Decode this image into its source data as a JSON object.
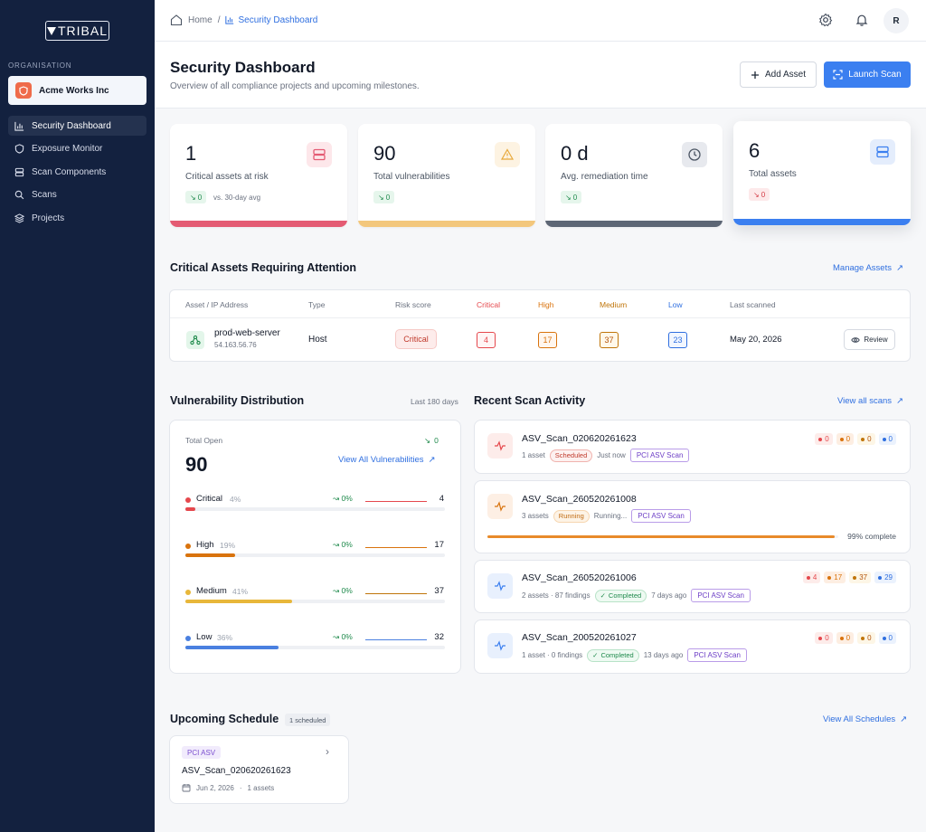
{
  "brand": {
    "name": "TRIBAL"
  },
  "sidebar": {
    "org_label": "ORGANISATION",
    "org_name": "Acme Works Inc",
    "items": [
      {
        "label": "Security Dashboard",
        "icon": "bar-chart-icon"
      },
      {
        "label": "Exposure Monitor",
        "icon": "shield-icon"
      },
      {
        "label": "Scan Components",
        "icon": "server-icon"
      },
      {
        "label": "Scans",
        "icon": "search-icon"
      },
      {
        "label": "Projects",
        "icon": "layers-icon"
      }
    ]
  },
  "topbar": {
    "breadcrumb": {
      "home": "Home",
      "sep": "/",
      "current": "Security Dashboard"
    },
    "avatar_initial": "R"
  },
  "header": {
    "title": "Security Dashboard",
    "subtitle": "Overview of all compliance projects and upcoming milestones.",
    "add_asset": "Add Asset",
    "launch_scan": "Launch Scan"
  },
  "stats": [
    {
      "value": "1",
      "label": "Critical assets at risk",
      "delta": "0",
      "note": "vs. 30-day avg",
      "color": "#e45b73"
    },
    {
      "value": "90",
      "label": "Total vulnerabilities",
      "delta": "0",
      "note": "",
      "color": "#f3c77c"
    },
    {
      "value": "0 d",
      "label": "Avg. remediation time",
      "delta": "0",
      "note": "",
      "color": "#5d6675"
    },
    {
      "value": "6",
      "label": "Total assets",
      "delta": "0",
      "note": "",
      "color": "#3b7ff0"
    }
  ],
  "critical_assets": {
    "title": "Critical Assets Requiring Attention",
    "manage_link": "Manage Assets",
    "columns": [
      "Asset / IP Address",
      "Type",
      "Risk score",
      "Critical",
      "High",
      "Medium",
      "Low",
      "Last scanned"
    ],
    "rows": [
      {
        "name": "prod-web-server",
        "ip": "54.163.56.76",
        "type": "Host",
        "risk": "Critical",
        "critical": "4",
        "high": "17",
        "medium": "37",
        "low": "23",
        "last_scanned": "May 20, 2026",
        "action": "Review"
      }
    ]
  },
  "vuln_dist": {
    "title": "Vulnerability Distribution",
    "range": "Last 180 days",
    "total_label": "Total Open",
    "total": "90",
    "total_delta": "0",
    "view_all": "View All Vulnerabilities",
    "rows": [
      {
        "name": "Critical",
        "pct": "4%",
        "trend": "0%",
        "count": "4",
        "fill": 0.04,
        "color": "#e5484d"
      },
      {
        "name": "High",
        "pct": "19%",
        "trend": "0%",
        "count": "17",
        "fill": 0.19,
        "color": "#d9730d"
      },
      {
        "name": "Medium",
        "pct": "41%",
        "trend": "0%",
        "count": "37",
        "fill": 0.41,
        "color": "#e8b73a"
      },
      {
        "name": "Low",
        "pct": "36%",
        "trend": "0%",
        "count": "32",
        "fill": 0.36,
        "color": "#4a80e0"
      }
    ]
  },
  "scans": {
    "title": "Recent Scan Activity",
    "view_all": "View all scans",
    "items": [
      {
        "name": "ASV_Scan_020620261623",
        "meta": "1 asset",
        "status": "Scheduled",
        "when": "Just now",
        "tag": "PCI ASV Scan",
        "counts": [
          "0",
          "0",
          "0",
          "0"
        ]
      },
      {
        "name": "ASV_Scan_260520261008",
        "meta": "3 assets",
        "status": "Running",
        "when": "Running...",
        "tag": "PCI ASV Scan",
        "progress": 0.99,
        "progress_text": "99% complete"
      },
      {
        "name": "ASV_Scan_260520261006",
        "meta": "2 assets · 87 findings",
        "status": "Completed",
        "when": "7 days ago",
        "tag": "PCI ASV Scan",
        "counts": [
          "4",
          "17",
          "37",
          "29"
        ]
      },
      {
        "name": "ASV_Scan_200520261027",
        "meta": "1 asset · 0 findings",
        "status": "Completed",
        "when": "13 days ago",
        "tag": "PCI ASV Scan",
        "counts": [
          "0",
          "0",
          "0",
          "0"
        ]
      }
    ]
  },
  "schedule": {
    "title": "Upcoming Schedule",
    "count_badge": "1 scheduled",
    "view_all": "View All Schedules",
    "items": [
      {
        "tag": "PCI ASV",
        "name": "ASV_Scan_020620261623",
        "date": "Jun 2, 2026",
        "sep": "·",
        "assets": "1 assets"
      }
    ]
  }
}
